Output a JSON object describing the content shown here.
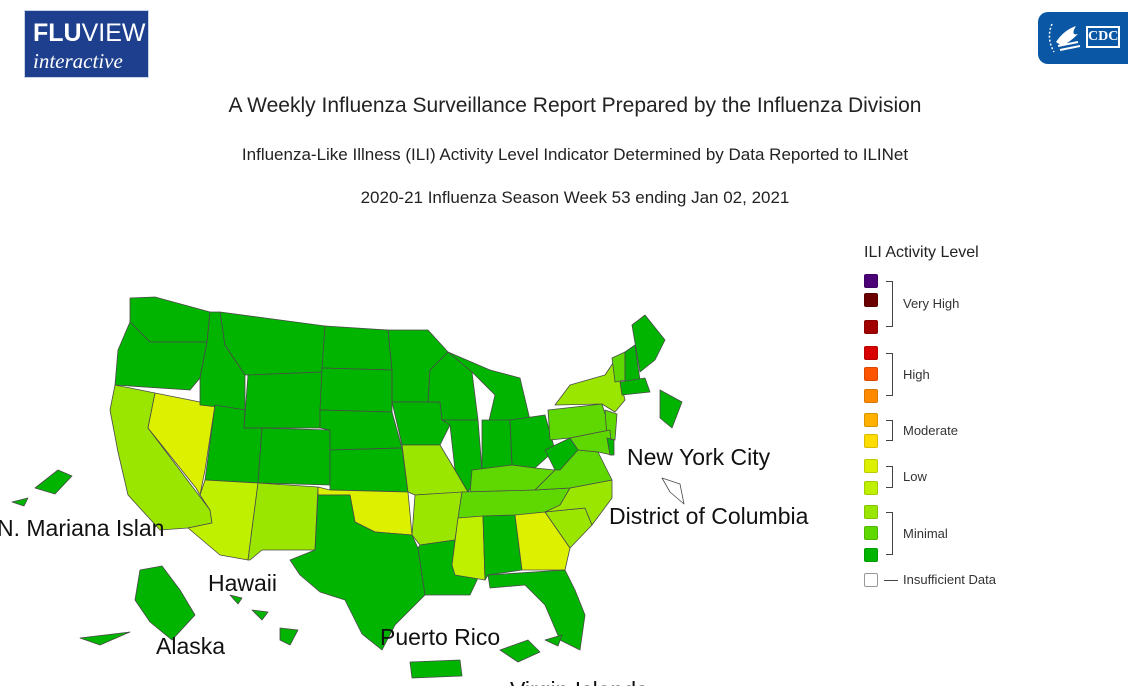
{
  "logos": {
    "fluview_bold": "FLU",
    "fluview_rest": "VIEW",
    "fluview_sub": "interactive",
    "cdc": "CDC"
  },
  "titles": {
    "main": "A Weekly Influenza Surveillance Report Prepared by the Influenza Division",
    "sub": "Influenza-Like Illness (ILI) Activity Level Indicator Determined by Data Reported to ILINet",
    "week": "2020-21 Influenza Season Week 53 ending Jan 02, 2021"
  },
  "legend": {
    "title": "ILI Activity Level",
    "levels": [
      {
        "level": 13,
        "color": "#4b0078"
      },
      {
        "level": 12,
        "color": "#6b0000"
      },
      {
        "level": 11,
        "color": "#a00000"
      },
      {
        "level": 10,
        "color": "#d80000"
      },
      {
        "level": 9,
        "color": "#ff5500"
      },
      {
        "level": 8,
        "color": "#ff8a00"
      },
      {
        "level": 7,
        "color": "#ffb000"
      },
      {
        "level": 6,
        "color": "#ffdc00"
      },
      {
        "level": 5,
        "color": "#dcf000"
      },
      {
        "level": 4,
        "color": "#bef000"
      },
      {
        "level": 3,
        "color": "#9be600"
      },
      {
        "level": 2,
        "color": "#5ed800"
      },
      {
        "level": 1,
        "color": "#00b400"
      },
      {
        "level": 0,
        "color": "#ffffff"
      }
    ],
    "groups": [
      "Very High",
      "High",
      "Moderate",
      "Low",
      "Minimal",
      "Insufficient Data"
    ]
  },
  "map_labels": {
    "new_york_city": "New York City",
    "district_of_columbia": "District of Columbia",
    "mariana": "N. Mariana Islan",
    "hawaii": "Hawaii",
    "alaska": "Alaska",
    "puerto_rico": "Puerto Rico",
    "virgin_islands": "Virgin Islands"
  },
  "state_levels": {
    "WA": 1,
    "OR": 1,
    "CA": 3,
    "NV": 5,
    "ID": 1,
    "MT": 1,
    "WY": 1,
    "UT": 1,
    "AZ": 4,
    "CO": 1,
    "NM": 3,
    "ND": 1,
    "SD": 1,
    "NE": 1,
    "KS": 1,
    "OK": 5,
    "TX": 1,
    "MN": 1,
    "IA": 1,
    "MO": 3,
    "AR": 3,
    "LA": 1,
    "WI": 1,
    "IL": 1,
    "MI": 1,
    "IN": 1,
    "OH": 1,
    "KY": 2,
    "TN": 2,
    "MS": 4,
    "AL": 1,
    "GA": 5,
    "FL": 1,
    "SC": 3,
    "NC": 3,
    "VA": 2,
    "WV": 1,
    "PA": 2,
    "NY": 3,
    "ME": 1,
    "NH": 1,
    "VT": 2,
    "MA": 1,
    "NJ": 2,
    "MD": 2,
    "DE": 1,
    "AK": 1,
    "HI": 1,
    "PR": 1,
    "VI": 1,
    "MP": 1,
    "NYC": 1,
    "DC": 0
  }
}
